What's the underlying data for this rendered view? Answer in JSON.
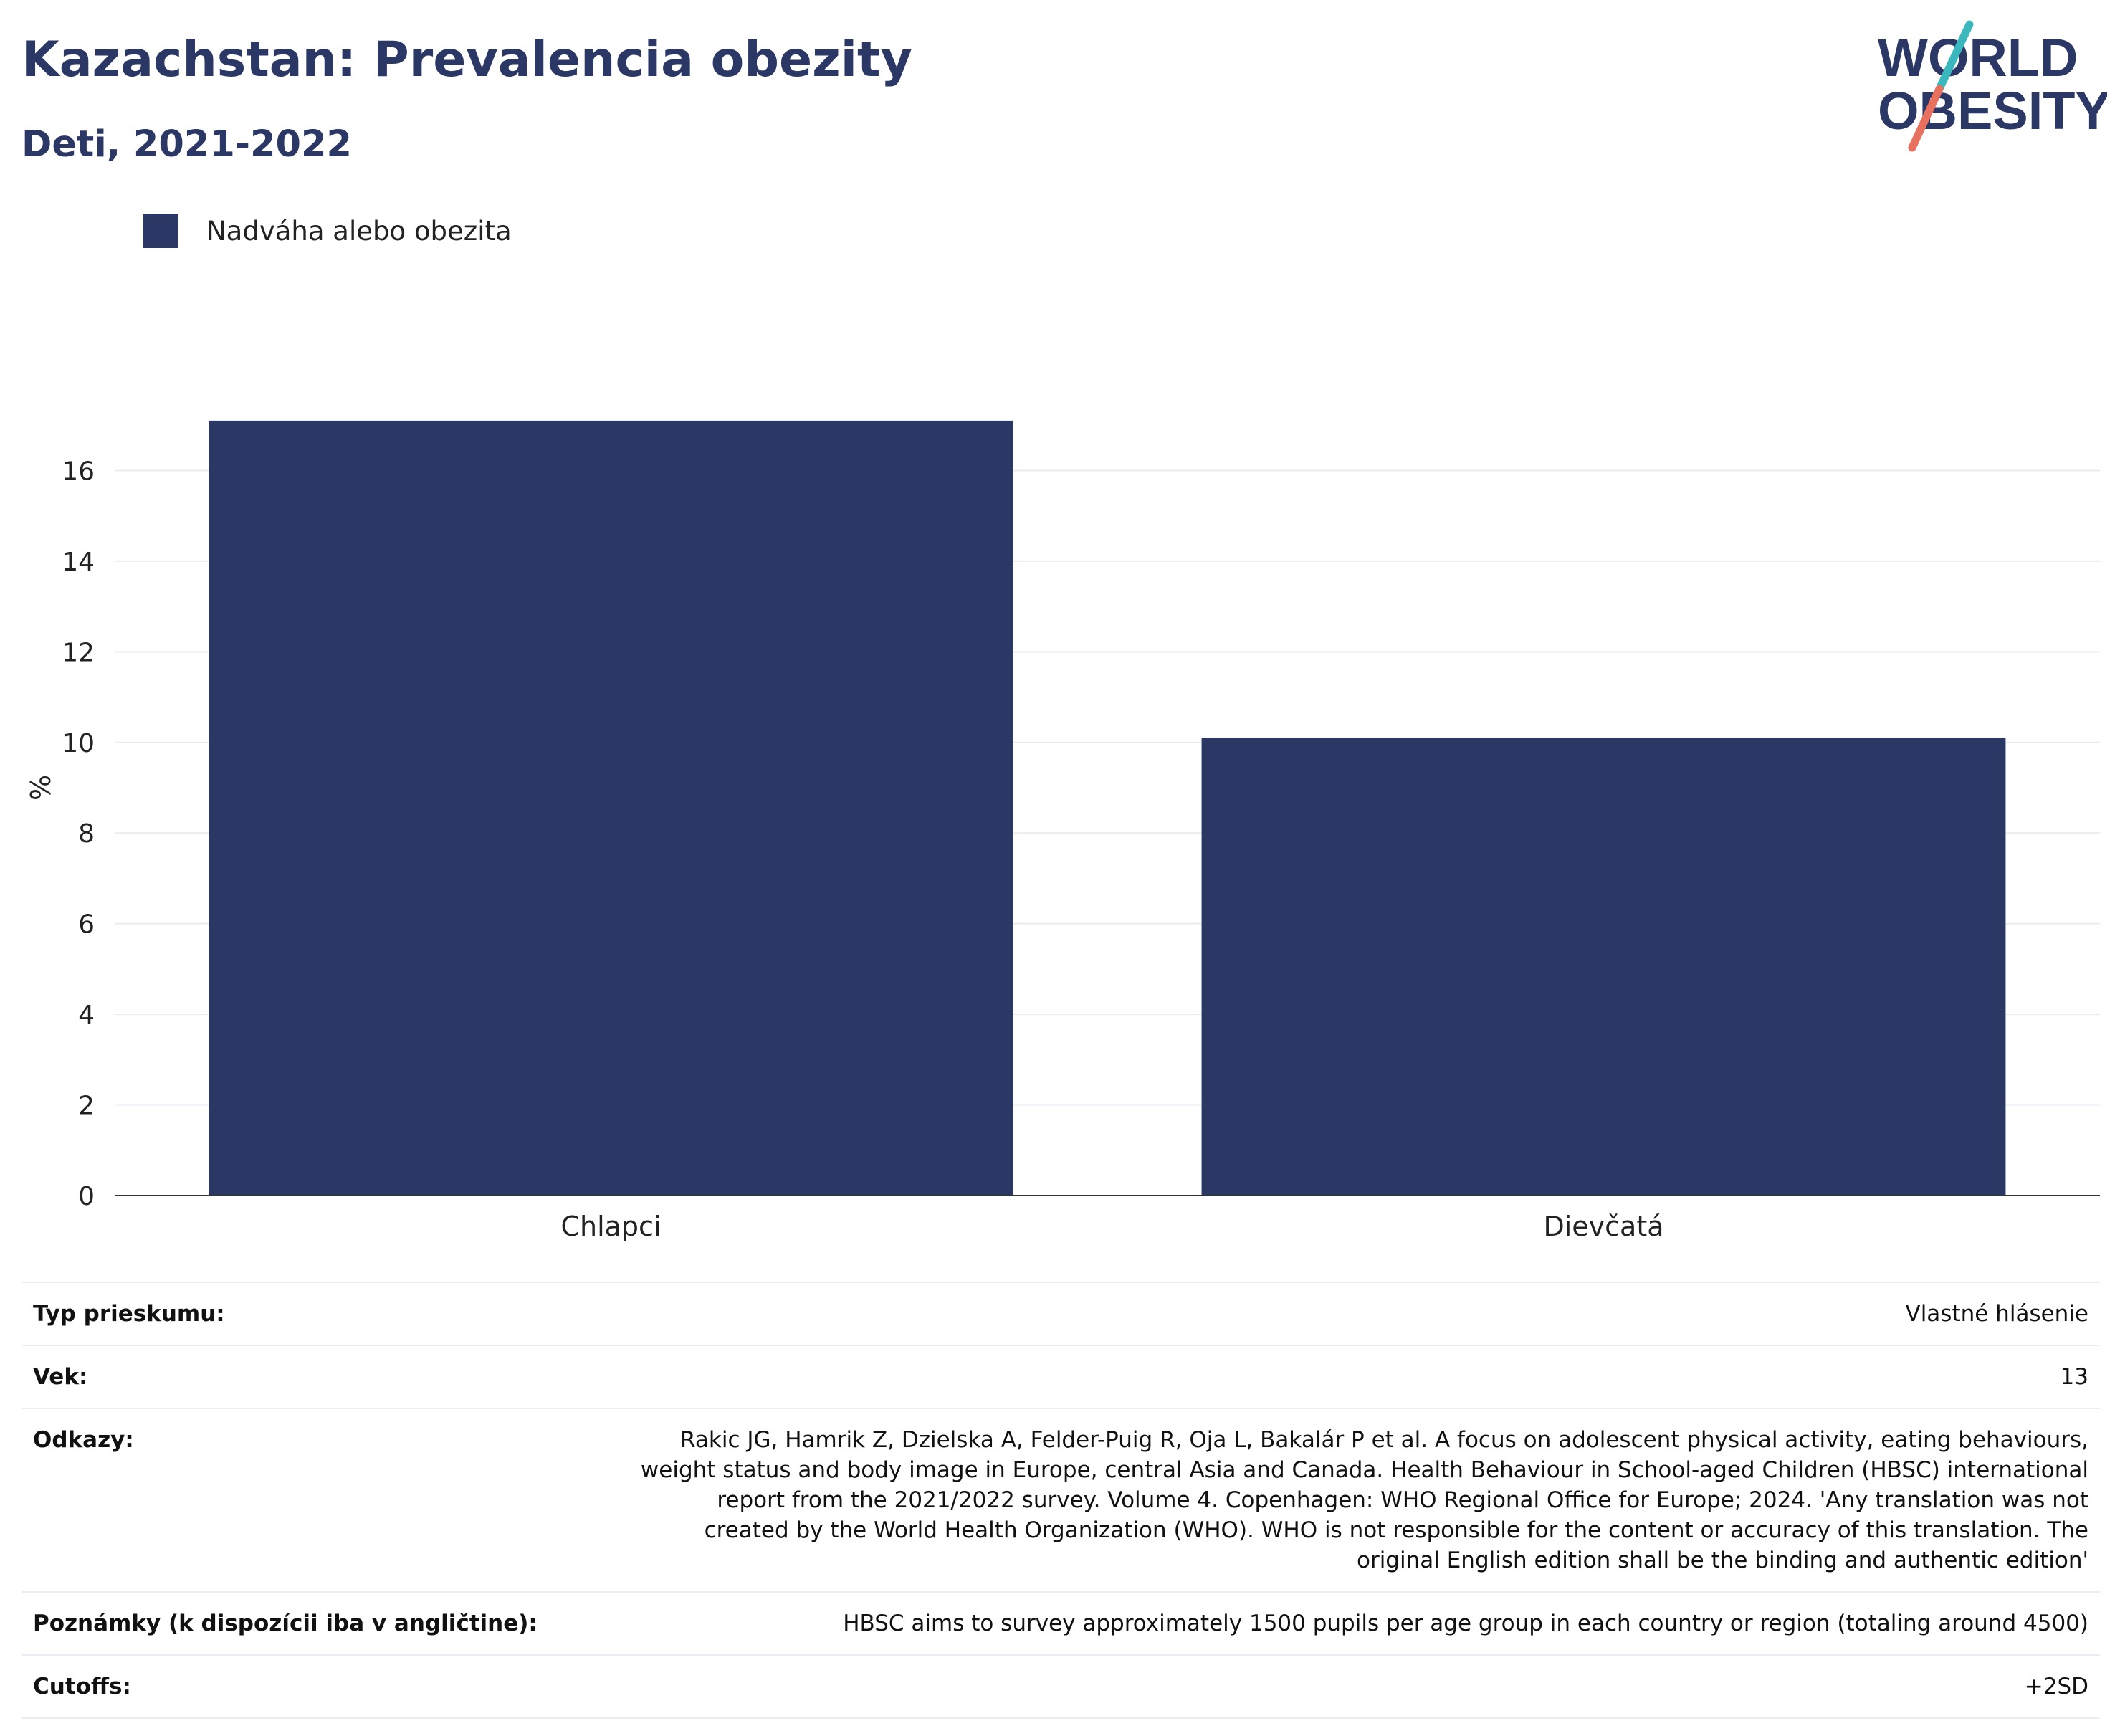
{
  "title": "Kazachstan: Prevalencia obezity",
  "subtitle": "Deti, 2021-2022",
  "logo": {
    "line1": "WORLD",
    "line2": "OBESITY"
  },
  "colors": {
    "bar": "#2b3765",
    "title": "#2b3765",
    "logo_teal": "#3bb8bd",
    "logo_coral": "#e8705e",
    "grid": "#e9ebf0"
  },
  "chart_data": {
    "type": "bar",
    "categories": [
      "Chlapci",
      "Dievčatá"
    ],
    "series": [
      {
        "name": "Nadváha alebo obezita",
        "values": [
          17.1,
          10.1
        ]
      }
    ],
    "ylabel": "%",
    "xlabel": "",
    "ylim": [
      0,
      18
    ],
    "yticks": [
      0,
      2,
      4,
      6,
      8,
      10,
      12,
      14,
      16
    ],
    "grid": true,
    "legend": "top-left"
  },
  "info": [
    {
      "label": "Typ prieskumu:",
      "value": "Vlastné hlásenie"
    },
    {
      "label": "Vek:",
      "value": "13"
    },
    {
      "label": "Odkazy:",
      "value": "Rakic JG, Hamrik Z, Dzielska A, Felder-Puig R, Oja L, Bakalár P et al. A focus on adolescent physical activity, eating behaviours, weight status and body image in Europe, central Asia and Canada. Health Behaviour in School-aged Children (HBSC) international report from the 2021/2022 survey. Volume 4. Copenhagen: WHO Regional Office for Europe; 2024. 'Any translation was not created by the World Health Organization (WHO). WHO is not responsible for the content or accuracy of this translation. The original English edition shall be the binding and authentic edition'"
    },
    {
      "label": "Poznámky (k dispozícii iba v angličtine):",
      "value": "HBSC aims to survey approximately 1500 pupils per age group in each country or region (totaling around 4500)"
    },
    {
      "label": "Cutoffs:",
      "value": "+2SD"
    }
  ]
}
